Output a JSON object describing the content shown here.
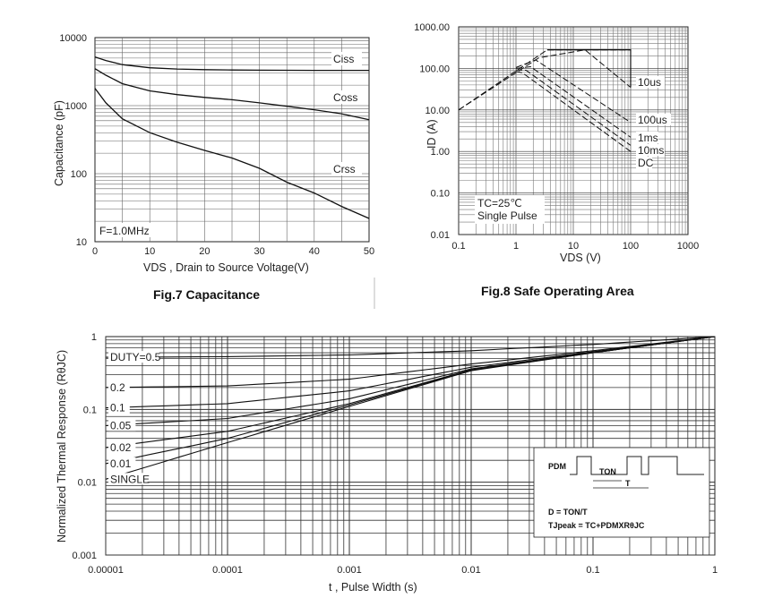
{
  "chart_data": [
    {
      "id": "capacitance",
      "type": "line",
      "title": "Fig.7 Capacitance",
      "xlabel": "VDS , Drain to Source Voltage(V)",
      "ylabel": "Capacitance (pF)",
      "xlim": [
        0,
        50
      ],
      "ylim": [
        10,
        10000
      ],
      "yscale": "log",
      "xticks": [
        "0",
        "10",
        "20",
        "30",
        "40",
        "50"
      ],
      "yticks": [
        "10",
        "100",
        "1000",
        "10000"
      ],
      "note": "F=1.0MHz",
      "series": [
        {
          "name": "Ciss",
          "x": [
            0,
            2,
            5,
            10,
            15,
            20,
            25,
            30,
            35,
            40,
            45,
            50
          ],
          "y": [
            5200,
            4600,
            4000,
            3600,
            3450,
            3380,
            3340,
            3320,
            3310,
            3300,
            3300,
            3300
          ]
        },
        {
          "name": "Coss",
          "x": [
            0,
            2,
            5,
            10,
            15,
            20,
            25,
            30,
            35,
            40,
            45,
            50
          ],
          "y": [
            3500,
            2800,
            2100,
            1650,
            1450,
            1320,
            1220,
            1100,
            980,
            870,
            760,
            620
          ]
        },
        {
          "name": "Crss",
          "x": [
            0,
            2,
            5,
            10,
            15,
            20,
            25,
            30,
            35,
            40,
            45,
            50
          ],
          "y": [
            1800,
            1100,
            640,
            400,
            290,
            220,
            170,
            120,
            75,
            52,
            33,
            22
          ]
        }
      ]
    },
    {
      "id": "soa",
      "type": "line",
      "title": "Fig.8 Safe Operating Area",
      "xlabel": "VDS (V)",
      "ylabel": "ID (A)",
      "xscale": "log",
      "yscale": "log",
      "xlim": [
        0.1,
        1000
      ],
      "ylim": [
        0.01,
        1000
      ],
      "xticks": [
        "0.1",
        "1",
        "10",
        "100",
        "1000"
      ],
      "yticks": [
        "0.01",
        "0.10",
        "1.00",
        "10.00",
        "100.00",
        "1000.00"
      ],
      "note_line1": "TC=25℃",
      "note_line2": "Single Pulse",
      "series": [
        {
          "name": "10us",
          "x": [
            0.1,
            3.5,
            100
          ],
          "y": [
            10,
            280,
            280
          ],
          "style": "solid-top"
        },
        {
          "name": "10us",
          "x": [
            0.1,
            2.5,
            16,
            100
          ],
          "y": [
            10,
            180,
            280,
            35
          ]
        },
        {
          "name": "100us",
          "x": [
            1,
            2.2,
            100
          ],
          "y": [
            105,
            160,
            5
          ]
        },
        {
          "name": "1ms",
          "x": [
            1,
            1.8,
            100
          ],
          "y": [
            100,
            110,
            2.2
          ]
        },
        {
          "name": "10ms",
          "x": [
            1,
            1.5,
            100
          ],
          "y": [
            92,
            90,
            1.4
          ]
        },
        {
          "name": "DC",
          "x": [
            1,
            1.3,
            100
          ],
          "y": [
            85,
            78,
            1.0
          ]
        }
      ],
      "labels": [
        "10us",
        "100us",
        "1ms",
        "10ms",
        "DC"
      ]
    },
    {
      "id": "thermal",
      "type": "line",
      "title": "",
      "xlabel": "t , Pulse Width (s)",
      "ylabel": "Normalized Thermal Response (RθJC)",
      "xscale": "log",
      "yscale": "log",
      "xlim": [
        1e-05,
        1
      ],
      "ylim": [
        0.001,
        1
      ],
      "xticks": [
        "0.00001",
        "0.0001",
        "0.001",
        "0.01",
        "0.1",
        "1"
      ],
      "yticks": [
        "0.001",
        "0.01",
        "0.1",
        "1"
      ],
      "series": [
        {
          "name": "DUTY=0.5",
          "x": [
            1e-05,
            0.0001,
            0.001,
            0.01,
            0.1,
            1
          ],
          "y": [
            0.52,
            0.53,
            0.56,
            0.64,
            0.78,
            1.0
          ]
        },
        {
          "name": "0.2",
          "x": [
            1e-05,
            0.0001,
            0.001,
            0.01,
            0.1,
            1
          ],
          "y": [
            0.2,
            0.21,
            0.26,
            0.42,
            0.64,
            1.0
          ]
        },
        {
          "name": "0.1",
          "x": [
            1e-05,
            0.0001,
            0.001,
            0.01,
            0.1,
            1
          ],
          "y": [
            0.105,
            0.12,
            0.18,
            0.38,
            0.62,
            1.0
          ]
        },
        {
          "name": "0.05",
          "x": [
            1e-05,
            0.0001,
            0.001,
            0.01,
            0.1,
            1
          ],
          "y": [
            0.06,
            0.075,
            0.14,
            0.36,
            0.61,
            1.0
          ]
        },
        {
          "name": "0.02",
          "x": [
            1e-05,
            0.0001,
            0.001,
            0.01,
            0.1,
            1
          ],
          "y": [
            0.03,
            0.05,
            0.12,
            0.35,
            0.6,
            1.0
          ]
        },
        {
          "name": "0.01",
          "x": [
            1e-05,
            0.0001,
            0.001,
            0.01,
            0.1,
            1
          ],
          "y": [
            0.018,
            0.04,
            0.115,
            0.345,
            0.6,
            1.0
          ]
        },
        {
          "name": "SINGLE",
          "x": [
            1e-05,
            0.0001,
            0.001,
            0.01,
            0.1,
            1
          ],
          "y": [
            0.011,
            0.035,
            0.11,
            0.34,
            0.6,
            1.0
          ]
        }
      ],
      "inset": {
        "pdm": "PDM",
        "ton": "TON",
        "t": "T",
        "formula1": "D = TON/T",
        "formula2": "TJpeak = TC+PDMXRθJC"
      }
    }
  ]
}
